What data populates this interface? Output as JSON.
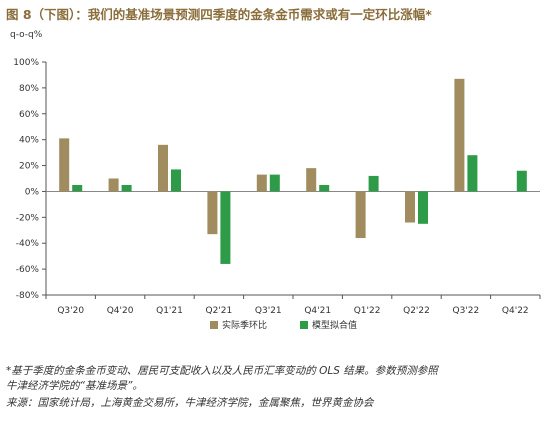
{
  "title": "图 8（下图）：我们的基准场景预测四季度的金条金币需求或有一定环比涨幅*",
  "notes": [
    "*基于季度的金条金币变动、居民可支配收入以及人民币汇率变动的 OLS 结果。参数预测参照",
    "牛津经济学院的“基准场景”。",
    "来源：国家统计局，上海黄金交易所，牛津经济学院，金属聚焦，世界黄金协会"
  ],
  "colors": {
    "actual": "#a08c5e",
    "model": "#2d9b48",
    "title": "#8a6d3b"
  },
  "chart_data": {
    "type": "bar",
    "unit_label": "q-o-q%",
    "categories": [
      "Q3'20",
      "Q4'20",
      "Q1'21",
      "Q2'21",
      "Q3'21",
      "Q4'21",
      "Q1'22",
      "Q2'22",
      "Q3'22",
      "Q4'22"
    ],
    "series": [
      {
        "name": "实际季环比",
        "values": [
          41,
          10,
          36,
          -33,
          13,
          18,
          -36,
          -24,
          87,
          null
        ]
      },
      {
        "name": "模型拟合值",
        "values": [
          5,
          5,
          17,
          -56,
          13,
          5,
          12,
          -25,
          28,
          16
        ]
      }
    ],
    "ylim": [
      -80,
      100
    ],
    "yticks": [
      -80,
      -60,
      -40,
      -20,
      0,
      20,
      40,
      60,
      80,
      100
    ],
    "ytick_labels": [
      "-80%",
      "-60%",
      "-40%",
      "-20%",
      "0%",
      "20%",
      "40%",
      "60%",
      "80%",
      "100%"
    ],
    "grid": false,
    "legend_position": "bottom-center"
  }
}
